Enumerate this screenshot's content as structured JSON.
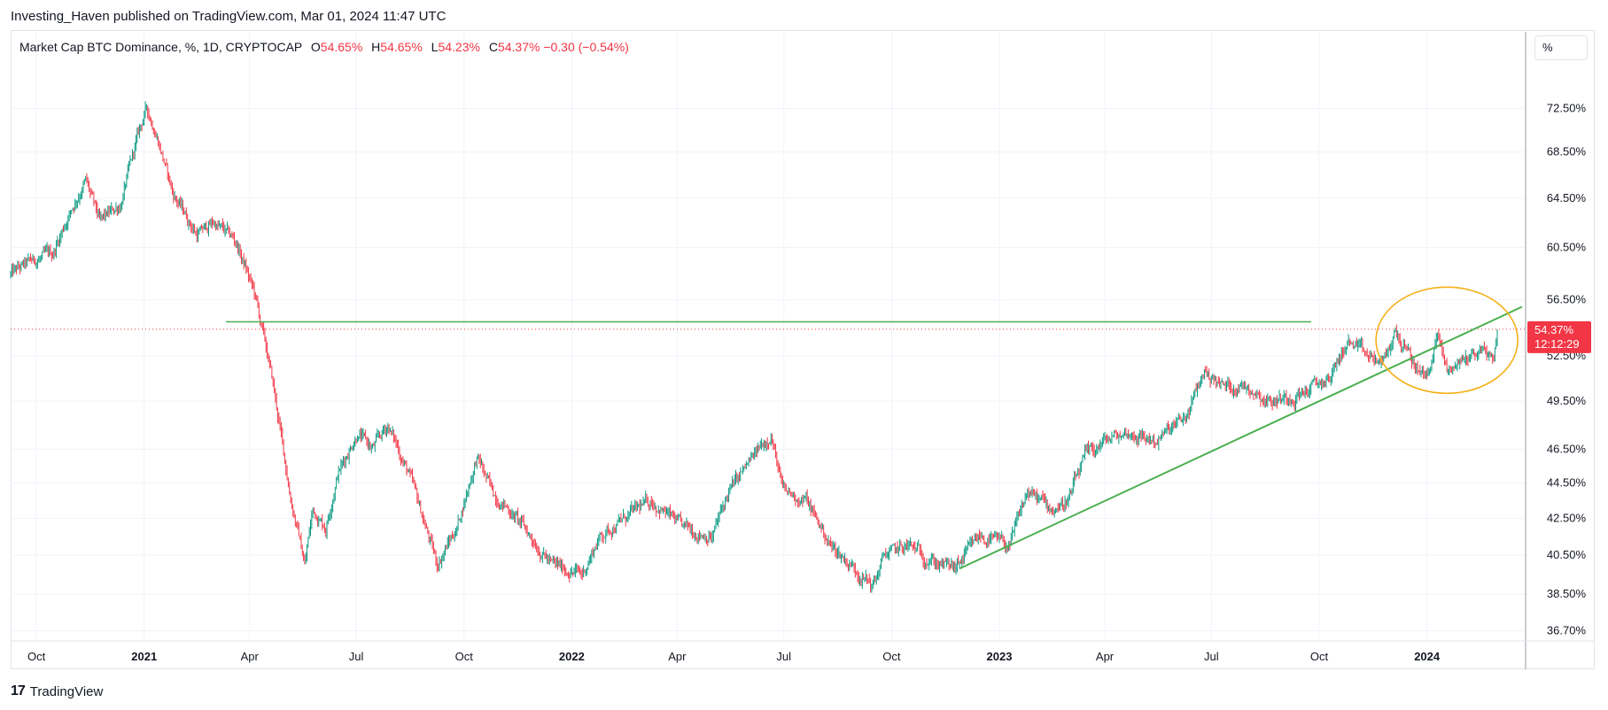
{
  "publisher_line": "Investing_Haven published on TradingView.com, Mar 01, 2024 11:47 UTC",
  "legend": {
    "symbol": "Market Cap BTC Dominance, %, 1D, CRYPTOCAP",
    "open_label": "O",
    "open": "54.65%",
    "high_label": "H",
    "high": "54.65%",
    "low_label": "L",
    "low": "54.23%",
    "close_label": "C",
    "close": "54.37%",
    "change": "−0.30 (−0.54%)"
  },
  "scale_unit": "%",
  "price_badge": {
    "value": "54.37%",
    "countdown": "12:12:29"
  },
  "footer_brand": "TradingView",
  "colors": {
    "up": "#089981",
    "down": "#f23645",
    "trendline": "#4caf50",
    "ellipse": "#f5b019",
    "grid": "#f0f3fa",
    "text": "#131722"
  },
  "chart_data": {
    "type": "candlestick",
    "y_scale": "log",
    "ylim": [
      36.3,
      76.5
    ],
    "x_axis": {
      "start": "2020-09-09",
      "end": "2024-03-01",
      "ticks": [
        {
          "date": "2020-10-01",
          "label": "Oct",
          "bold": false
        },
        {
          "date": "2021-01-01",
          "label": "2021",
          "bold": true
        },
        {
          "date": "2021-04-01",
          "label": "Apr",
          "bold": false
        },
        {
          "date": "2021-07-01",
          "label": "Jul",
          "bold": false
        },
        {
          "date": "2021-10-01",
          "label": "Oct",
          "bold": false
        },
        {
          "date": "2022-01-01",
          "label": "2022",
          "bold": true
        },
        {
          "date": "2022-04-01",
          "label": "Apr",
          "bold": false
        },
        {
          "date": "2022-07-01",
          "label": "Jul",
          "bold": false
        },
        {
          "date": "2022-10-01",
          "label": "Oct",
          "bold": false
        },
        {
          "date": "2023-01-01",
          "label": "2023",
          "bold": true
        },
        {
          "date": "2023-04-01",
          "label": "Apr",
          "bold": false
        },
        {
          "date": "2023-07-01",
          "label": "Jul",
          "bold": false
        },
        {
          "date": "2023-10-01",
          "label": "Oct",
          "bold": false
        },
        {
          "date": "2024-01-01",
          "label": "2024",
          "bold": true
        }
      ]
    },
    "y_ticks": [
      {
        "value": 72.5,
        "label": "72.50%"
      },
      {
        "value": 68.5,
        "label": "68.50%"
      },
      {
        "value": 64.5,
        "label": "64.50%"
      },
      {
        "value": 60.5,
        "label": "60.50%"
      },
      {
        "value": 56.5,
        "label": "56.50%"
      },
      {
        "value": 52.5,
        "label": "52.50%"
      },
      {
        "value": 49.5,
        "label": "49.50%"
      },
      {
        "value": 46.5,
        "label": "46.50%"
      },
      {
        "value": 44.5,
        "label": "44.50%"
      },
      {
        "value": 42.5,
        "label": "42.50%"
      },
      {
        "value": 40.5,
        "label": "40.50%"
      },
      {
        "value": 38.5,
        "label": "38.50%"
      },
      {
        "value": 36.7,
        "label": "36.70%"
      }
    ],
    "series_path": [
      {
        "date": "2020-09-09",
        "value": 58.4
      },
      {
        "date": "2020-09-25",
        "value": 59.3
      },
      {
        "date": "2020-10-15",
        "value": 60.0
      },
      {
        "date": "2020-10-28",
        "value": 63.0
      },
      {
        "date": "2020-11-12",
        "value": 66.0
      },
      {
        "date": "2020-11-24",
        "value": 62.5
      },
      {
        "date": "2020-12-12",
        "value": 64.0
      },
      {
        "date": "2020-12-28",
        "value": 70.5
      },
      {
        "date": "2021-01-03",
        "value": 72.5
      },
      {
        "date": "2021-01-12",
        "value": 70.0
      },
      {
        "date": "2021-01-25",
        "value": 65.0
      },
      {
        "date": "2021-02-15",
        "value": 61.5
      },
      {
        "date": "2021-03-01",
        "value": 62.5
      },
      {
        "date": "2021-03-20",
        "value": 61.0
      },
      {
        "date": "2021-04-05",
        "value": 57.0
      },
      {
        "date": "2021-04-20",
        "value": 51.0
      },
      {
        "date": "2021-05-05",
        "value": 44.0
      },
      {
        "date": "2021-05-18",
        "value": 40.0
      },
      {
        "date": "2021-05-25",
        "value": 43.0
      },
      {
        "date": "2021-06-05",
        "value": 42.0
      },
      {
        "date": "2021-06-15",
        "value": 45.0
      },
      {
        "date": "2021-07-02",
        "value": 47.5
      },
      {
        "date": "2021-07-15",
        "value": 46.5
      },
      {
        "date": "2021-07-28",
        "value": 48.0
      },
      {
        "date": "2021-08-15",
        "value": 45.0
      },
      {
        "date": "2021-09-08",
        "value": 40.0
      },
      {
        "date": "2021-09-25",
        "value": 42.0
      },
      {
        "date": "2021-10-12",
        "value": 46.0
      },
      {
        "date": "2021-10-25",
        "value": 44.0
      },
      {
        "date": "2021-11-15",
        "value": 42.5
      },
      {
        "date": "2021-12-15",
        "value": 40.0
      },
      {
        "date": "2022-01-10",
        "value": 39.5
      },
      {
        "date": "2022-01-25",
        "value": 41.5
      },
      {
        "date": "2022-02-15",
        "value": 42.5
      },
      {
        "date": "2022-03-10",
        "value": 43.5
      },
      {
        "date": "2022-04-05",
        "value": 42.0
      },
      {
        "date": "2022-05-01",
        "value": 41.5
      },
      {
        "date": "2022-05-15",
        "value": 44.0
      },
      {
        "date": "2022-06-05",
        "value": 46.0
      },
      {
        "date": "2022-06-20",
        "value": 47.5
      },
      {
        "date": "2022-06-30",
        "value": 44.0
      },
      {
        "date": "2022-07-20",
        "value": 43.5
      },
      {
        "date": "2022-08-10",
        "value": 41.0
      },
      {
        "date": "2022-09-05",
        "value": 39.5
      },
      {
        "date": "2022-09-15",
        "value": 38.9
      },
      {
        "date": "2022-09-25",
        "value": 40.5
      },
      {
        "date": "2022-10-15",
        "value": 41.0
      },
      {
        "date": "2022-11-12",
        "value": 40.0
      },
      {
        "date": "2022-11-25",
        "value": 39.8
      },
      {
        "date": "2022-12-15",
        "value": 41.5
      },
      {
        "date": "2023-01-10",
        "value": 41.0
      },
      {
        "date": "2023-01-25",
        "value": 44.0
      },
      {
        "date": "2023-02-15",
        "value": 43.0
      },
      {
        "date": "2023-03-01",
        "value": 43.5
      },
      {
        "date": "2023-03-15",
        "value": 46.0
      },
      {
        "date": "2023-04-01",
        "value": 47.0
      },
      {
        "date": "2023-04-20",
        "value": 47.5
      },
      {
        "date": "2023-05-15",
        "value": 47.0
      },
      {
        "date": "2023-06-10",
        "value": 48.5
      },
      {
        "date": "2023-06-25",
        "value": 51.5
      },
      {
        "date": "2023-07-10",
        "value": 50.5
      },
      {
        "date": "2023-08-01",
        "value": 50.5
      },
      {
        "date": "2023-08-20",
        "value": 49.5
      },
      {
        "date": "2023-09-15",
        "value": 50.0
      },
      {
        "date": "2023-10-10",
        "value": 51.0
      },
      {
        "date": "2023-10-25",
        "value": 53.5
      },
      {
        "date": "2023-11-10",
        "value": 52.5
      },
      {
        "date": "2023-11-25",
        "value": 52.0
      },
      {
        "date": "2023-12-05",
        "value": 54.2
      },
      {
        "date": "2023-12-20",
        "value": 52.0
      },
      {
        "date": "2024-01-01",
        "value": 51.0
      },
      {
        "date": "2024-01-10",
        "value": 54.0
      },
      {
        "date": "2024-01-18",
        "value": 51.5
      },
      {
        "date": "2024-02-05",
        "value": 52.5
      },
      {
        "date": "2024-02-20",
        "value": 53.0
      },
      {
        "date": "2024-02-27",
        "value": 52.0
      },
      {
        "date": "2024-03-01",
        "value": 54.37
      }
    ],
    "annotations": {
      "horizontal_line": {
        "value": 54.9
      },
      "last_price_line": {
        "value": 54.37
      },
      "trendline": [
        {
          "date": "2022-11-28",
          "value": 39.8
        },
        {
          "date": "2024-03-01",
          "value": 55.6
        }
      ],
      "ellipse": {
        "center_date": "2024-01-18",
        "center_value": 53.6,
        "span_days": 92
      }
    }
  }
}
